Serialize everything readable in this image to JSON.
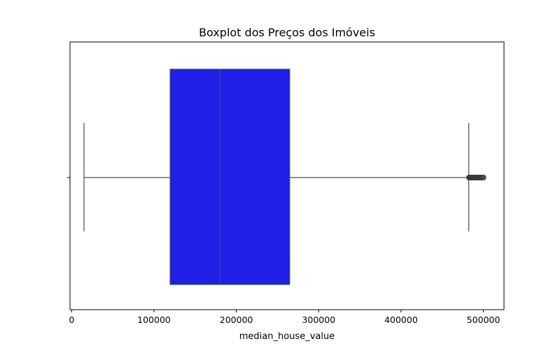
{
  "chart_data": {
    "type": "boxplot",
    "title": "Boxplot dos Preços dos Imóveis",
    "xlabel": "median_house_value",
    "ylabel": "",
    "orientation": "horizontal",
    "xlim": [
      -2000,
      525000
    ],
    "x_ticks": [
      0,
      100000,
      200000,
      300000,
      400000,
      500000
    ],
    "x_tick_labels": [
      "0",
      "100000",
      "200000",
      "300000",
      "400000",
      "500000"
    ],
    "box": {
      "whisker_low": 14999,
      "q1": 119600,
      "median": 179700,
      "q3": 264725,
      "whisker_high": 482200
    },
    "outliers_range": [
      482500,
      500001
    ],
    "outlier_count": 40,
    "box_color": "#1f1fe6",
    "line_color": "#4d4d4d",
    "grid": false,
    "legend": "none"
  }
}
